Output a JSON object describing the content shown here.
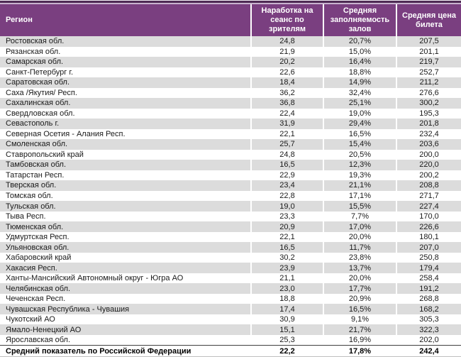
{
  "table": {
    "columns": [
      {
        "label": "Регион"
      },
      {
        "label": "Наработка на сеанс по зрителям"
      },
      {
        "label": "Средняя заполняемость залов"
      },
      {
        "label": "Средняя цена билета"
      }
    ],
    "rows": [
      {
        "region": "Ростовская обл.",
        "viewers_per_session": "24,8",
        "occupancy": "20,7%",
        "ticket_price": "207,5"
      },
      {
        "region": "Рязанская обл.",
        "viewers_per_session": "21,9",
        "occupancy": "15,0%",
        "ticket_price": "201,1"
      },
      {
        "region": "Самарская обл.",
        "viewers_per_session": "20,2",
        "occupancy": "16,4%",
        "ticket_price": "219,7"
      },
      {
        "region": "Санкт-Петербург г.",
        "viewers_per_session": "22,6",
        "occupancy": "18,8%",
        "ticket_price": "252,7"
      },
      {
        "region": "Саратовская обл.",
        "viewers_per_session": "18,4",
        "occupancy": "14,9%",
        "ticket_price": "211,2"
      },
      {
        "region": "Саха /Якутия/ Респ.",
        "viewers_per_session": "36,2",
        "occupancy": "32,4%",
        "ticket_price": "276,6"
      },
      {
        "region": "Сахалинская обл.",
        "viewers_per_session": "36,8",
        "occupancy": "25,1%",
        "ticket_price": "300,2"
      },
      {
        "region": "Свердловская обл.",
        "viewers_per_session": "22,4",
        "occupancy": "19,0%",
        "ticket_price": "195,3"
      },
      {
        "region": "Севастополь г.",
        "viewers_per_session": "31,9",
        "occupancy": "29,4%",
        "ticket_price": "201,8"
      },
      {
        "region": "Северная Осетия - Алания Респ.",
        "viewers_per_session": "22,1",
        "occupancy": "16,5%",
        "ticket_price": "232,4"
      },
      {
        "region": "Смоленская обл.",
        "viewers_per_session": "25,7",
        "occupancy": "15,4%",
        "ticket_price": "203,6"
      },
      {
        "region": "Ставропольский край",
        "viewers_per_session": "24,8",
        "occupancy": "20,5%",
        "ticket_price": "200,0"
      },
      {
        "region": "Тамбовская обл.",
        "viewers_per_session": "16,5",
        "occupancy": "12,3%",
        "ticket_price": "220,0"
      },
      {
        "region": "Татарстан Респ.",
        "viewers_per_session": "22,9",
        "occupancy": "19,3%",
        "ticket_price": "200,2"
      },
      {
        "region": "Тверская обл.",
        "viewers_per_session": "23,4",
        "occupancy": "21,1%",
        "ticket_price": "208,8"
      },
      {
        "region": "Томская обл.",
        "viewers_per_session": "22,8",
        "occupancy": "17,1%",
        "ticket_price": "271,7"
      },
      {
        "region": "Тульская обл.",
        "viewers_per_session": "19,0",
        "occupancy": "15,5%",
        "ticket_price": "227,4"
      },
      {
        "region": "Тыва Респ.",
        "viewers_per_session": "23,3",
        "occupancy": "7,7%",
        "ticket_price": "170,0"
      },
      {
        "region": "Тюменская обл.",
        "viewers_per_session": "20,9",
        "occupancy": "17,0%",
        "ticket_price": "226,6"
      },
      {
        "region": "Удмуртская Респ.",
        "viewers_per_session": "22,1",
        "occupancy": "20,0%",
        "ticket_price": "180,1"
      },
      {
        "region": "Ульяновская обл.",
        "viewers_per_session": "16,5",
        "occupancy": "11,7%",
        "ticket_price": "207,0"
      },
      {
        "region": "Хабаровский край",
        "viewers_per_session": "30,2",
        "occupancy": "23,8%",
        "ticket_price": "250,8"
      },
      {
        "region": "Хакасия Респ.",
        "viewers_per_session": "23,9",
        "occupancy": "13,7%",
        "ticket_price": "179,4"
      },
      {
        "region": "Ханты-Мансийский Автономный округ - Югра АО",
        "viewers_per_session": "21,1",
        "occupancy": "20,0%",
        "ticket_price": "258,4"
      },
      {
        "region": "Челябинская обл.",
        "viewers_per_session": "23,0",
        "occupancy": "17,7%",
        "ticket_price": "191,2"
      },
      {
        "region": "Чеченская Респ.",
        "viewers_per_session": "18,8",
        "occupancy": "20,9%",
        "ticket_price": "268,8"
      },
      {
        "region": "Чувашская Республика - Чувашия",
        "viewers_per_session": "17,4",
        "occupancy": "16,5%",
        "ticket_price": "168,2"
      },
      {
        "region": "Чукотский АО",
        "viewers_per_session": "30,9",
        "occupancy": "9,1%",
        "ticket_price": "305,3"
      },
      {
        "region": "Ямало-Ненецкий АО",
        "viewers_per_session": "15,1",
        "occupancy": "21,7%",
        "ticket_price": "322,3"
      },
      {
        "region": "Ярославская обл.",
        "viewers_per_session": "25,3",
        "occupancy": "16,9%",
        "ticket_price": "202,0"
      }
    ],
    "summary": {
      "region": "Средний показатель по Российской Федерации",
      "viewers_per_session": "22,2",
      "occupancy": "17,8%",
      "ticket_price": "242,4"
    }
  },
  "colors": {
    "header_bg": "#7a3f80",
    "top_accent_dark": "#4e2a54",
    "top_accent_light": "#c9b3cf",
    "stripe_bg": "#dcdcdc",
    "header_text": "#ffffff",
    "body_text": "#1a1a1a"
  }
}
